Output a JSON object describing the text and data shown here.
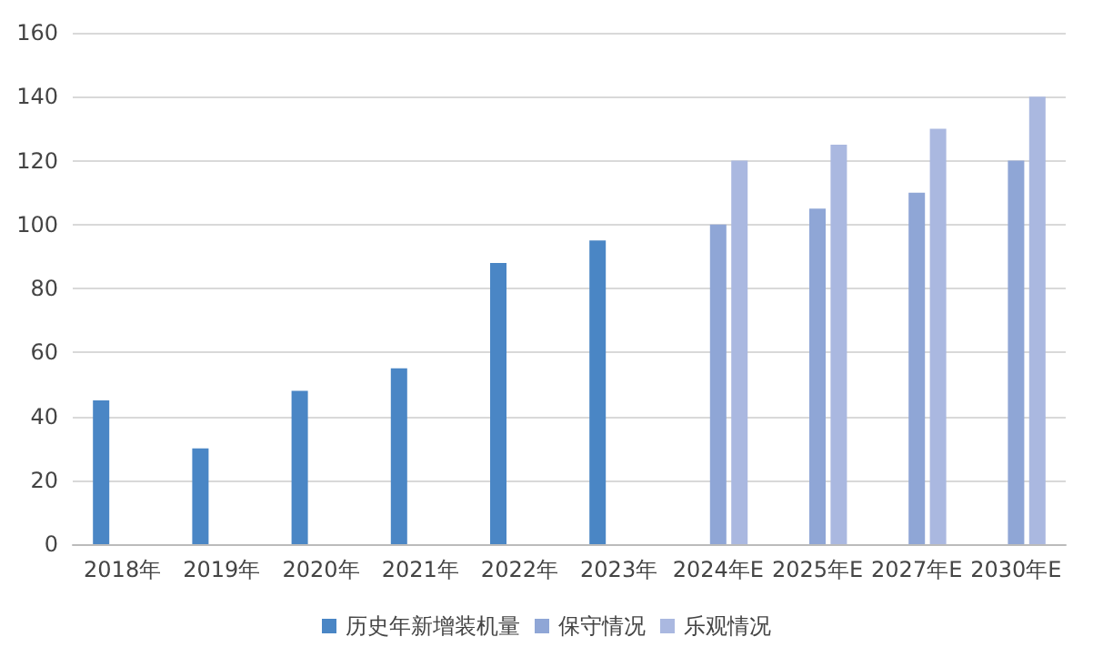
{
  "chart_data": {
    "type": "bar",
    "categories": [
      "2018年",
      "2019年",
      "2020年",
      "2021年",
      "2022年",
      "2023年",
      "2024年E",
      "2025年E",
      "2027年E",
      "2030年E"
    ],
    "series": [
      {
        "name": "历史年新增装机量",
        "color": "#4a86c5",
        "values": [
          45,
          30,
          48,
          55,
          88,
          95,
          null,
          null,
          null,
          null
        ]
      },
      {
        "name": "保守情况",
        "color": "#8fa6d6",
        "values": [
          null,
          null,
          null,
          null,
          null,
          null,
          100,
          105,
          110,
          120
        ]
      },
      {
        "name": "乐观情况",
        "color": "#aab8e0",
        "values": [
          null,
          null,
          null,
          null,
          null,
          null,
          120,
          125,
          130,
          140
        ]
      }
    ],
    "ylim": [
      0,
      160
    ],
    "yticks": [
      0,
      20,
      40,
      60,
      80,
      100,
      120,
      140,
      160
    ],
    "grid": "y",
    "legend": "bottom"
  }
}
